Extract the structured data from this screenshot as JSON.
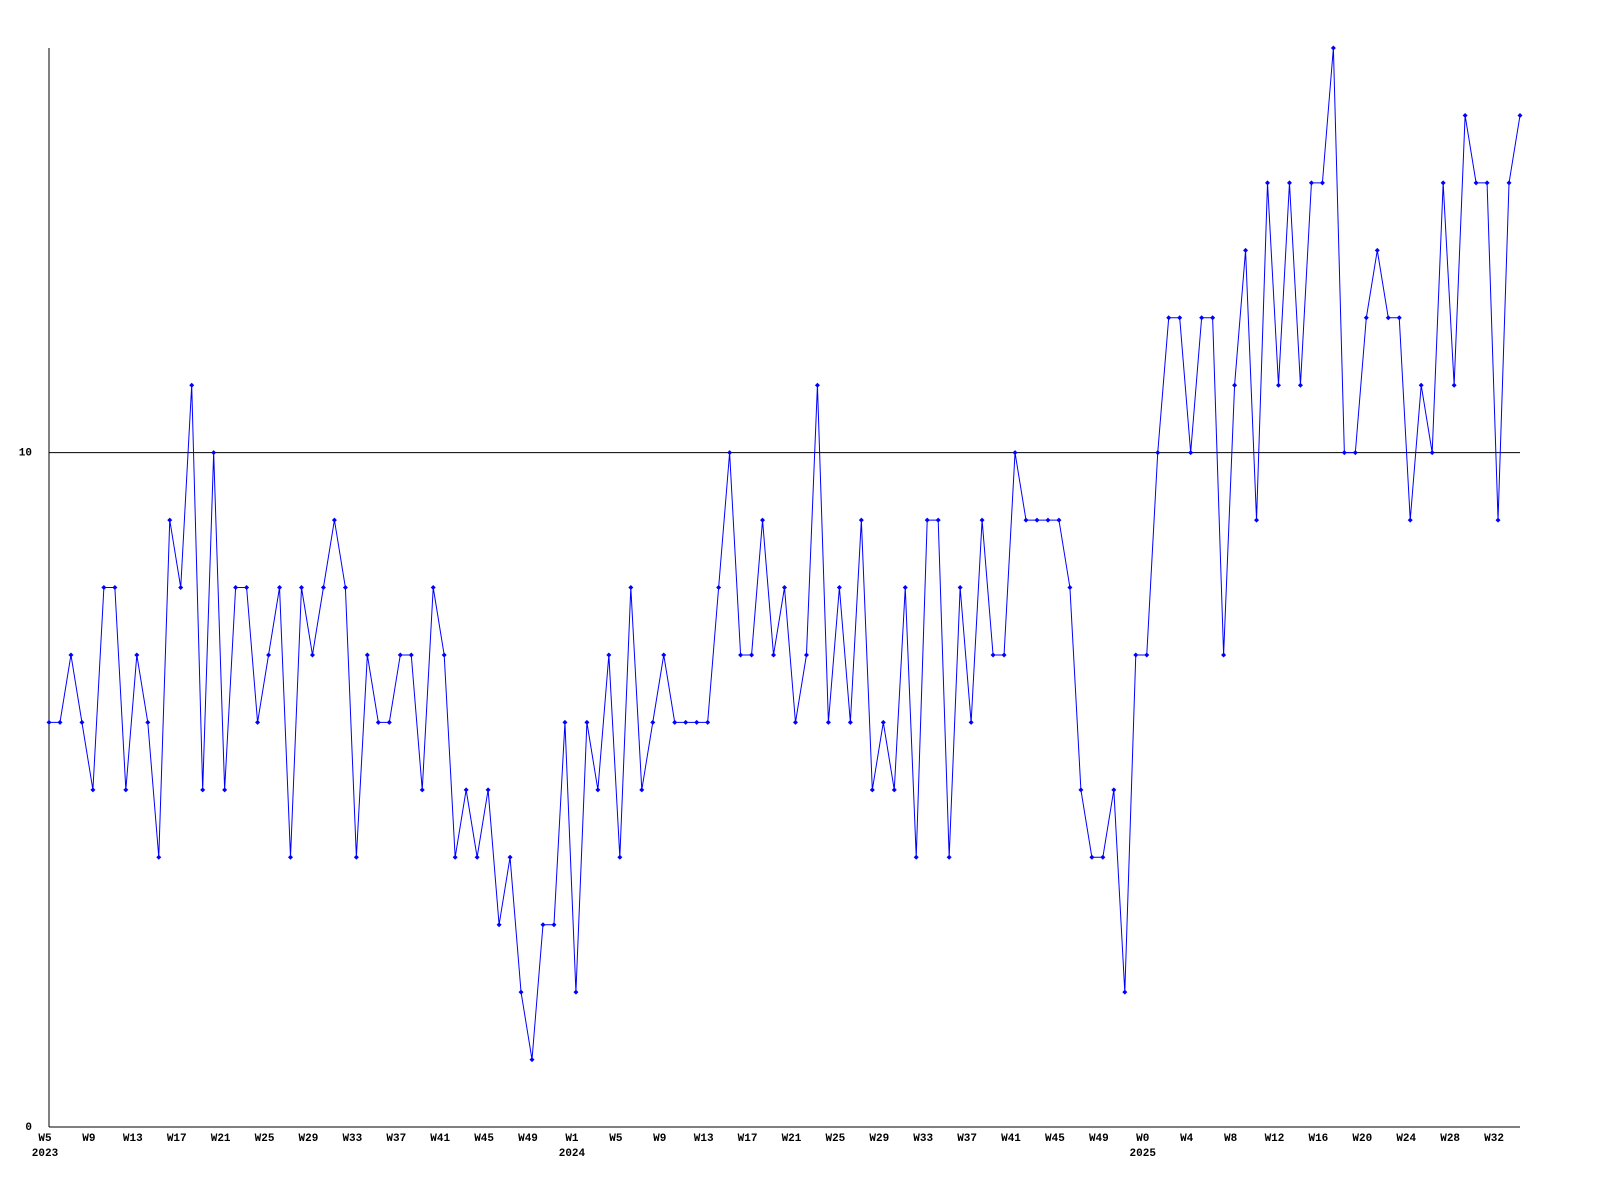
{
  "chart_data": {
    "type": "line",
    "categories": [
      "W5",
      null,
      null,
      null,
      "W9",
      null,
      null,
      null,
      "W13",
      null,
      null,
      null,
      "W17",
      null,
      null,
      null,
      "W21",
      null,
      null,
      null,
      "W25",
      null,
      null,
      null,
      "W29",
      null,
      null,
      null,
      "W33",
      null,
      null,
      null,
      "W37",
      null,
      null,
      null,
      "W41",
      null,
      null,
      null,
      "W45",
      null,
      null,
      null,
      "W49",
      null,
      null,
      null,
      "W1",
      null,
      null,
      null,
      "W5",
      null,
      null,
      null,
      "W9",
      null,
      null,
      null,
      "W13",
      null,
      null,
      null,
      "W17",
      null,
      null,
      null,
      "W21",
      null,
      null,
      null,
      "W25",
      null,
      null,
      null,
      "W29",
      null,
      null,
      null,
      "W33",
      null,
      null,
      null,
      "W37",
      null,
      null,
      null,
      "W41",
      null,
      null,
      null,
      "W45",
      null,
      null,
      null,
      "W49",
      null,
      null,
      null,
      "W0",
      null,
      null,
      null,
      "W4",
      null,
      null,
      null,
      "W8",
      null,
      null,
      null,
      "W12",
      null,
      null,
      null,
      "W16",
      null,
      null,
      null,
      "W20",
      null,
      null,
      null,
      "W24",
      null,
      null,
      null,
      "W28",
      null,
      null,
      null,
      "W32",
      null,
      null
    ],
    "years": [
      "2023",
      null,
      null,
      null,
      null,
      null,
      null,
      null,
      null,
      null,
      null,
      null,
      null,
      null,
      null,
      null,
      null,
      null,
      null,
      null,
      null,
      null,
      null,
      null,
      null,
      null,
      null,
      null,
      null,
      null,
      null,
      null,
      null,
      null,
      null,
      null,
      null,
      null,
      null,
      null,
      null,
      null,
      null,
      null,
      null,
      null,
      null,
      null,
      "2024",
      null,
      null,
      null,
      null,
      null,
      null,
      null,
      null,
      null,
      null,
      null,
      null,
      null,
      null,
      null,
      null,
      null,
      null,
      null,
      null,
      null,
      null,
      null,
      null,
      null,
      null,
      null,
      null,
      null,
      null,
      null,
      null,
      null,
      null,
      null,
      null,
      null,
      null,
      null,
      null,
      null,
      null,
      null,
      null,
      null,
      null,
      null,
      null,
      null,
      null,
      null,
      "2025",
      null,
      null,
      null,
      null,
      null,
      null,
      null,
      null,
      null,
      null,
      null,
      null,
      null,
      null,
      null,
      null,
      null,
      null,
      null,
      null,
      null,
      null,
      null,
      null,
      null,
      null,
      null,
      null,
      null,
      null,
      null,
      null,
      null,
      null
    ],
    "series": [
      {
        "color": "#0000ff",
        "values": [
          6,
          6,
          7,
          6,
          5,
          8,
          8,
          5,
          7,
          6,
          4,
          9,
          8,
          11,
          5,
          10,
          5,
          8,
          8,
          6,
          7,
          8,
          4,
          8,
          7,
          8,
          9,
          8,
          4,
          7,
          6,
          6,
          7,
          7,
          5,
          8,
          7,
          4,
          5,
          4,
          5,
          3,
          4,
          2,
          1,
          3,
          3,
          6,
          2,
          6,
          5,
          7,
          4,
          8,
          5,
          6,
          7,
          6,
          6,
          6,
          6,
          8,
          10,
          7,
          7,
          9,
          7,
          8,
          6,
          7,
          11,
          6,
          8,
          6,
          9,
          5,
          6,
          5,
          8,
          4,
          9,
          9,
          4,
          8,
          6,
          9,
          7,
          7,
          10,
          9,
          9,
          9,
          9,
          8,
          5,
          4,
          4,
          5,
          2,
          7,
          7,
          10,
          12,
          12,
          10,
          12,
          12,
          7,
          11,
          13,
          9,
          14,
          11,
          14,
          11,
          14,
          14,
          16,
          10,
          10,
          12,
          13,
          12,
          12,
          9,
          11,
          10,
          14,
          11,
          15,
          14,
          14,
          9,
          14,
          15
        ]
      }
    ],
    "ylim": [
      0,
      16
    ],
    "yticks": [
      0,
      10
    ],
    "grid": true
  }
}
